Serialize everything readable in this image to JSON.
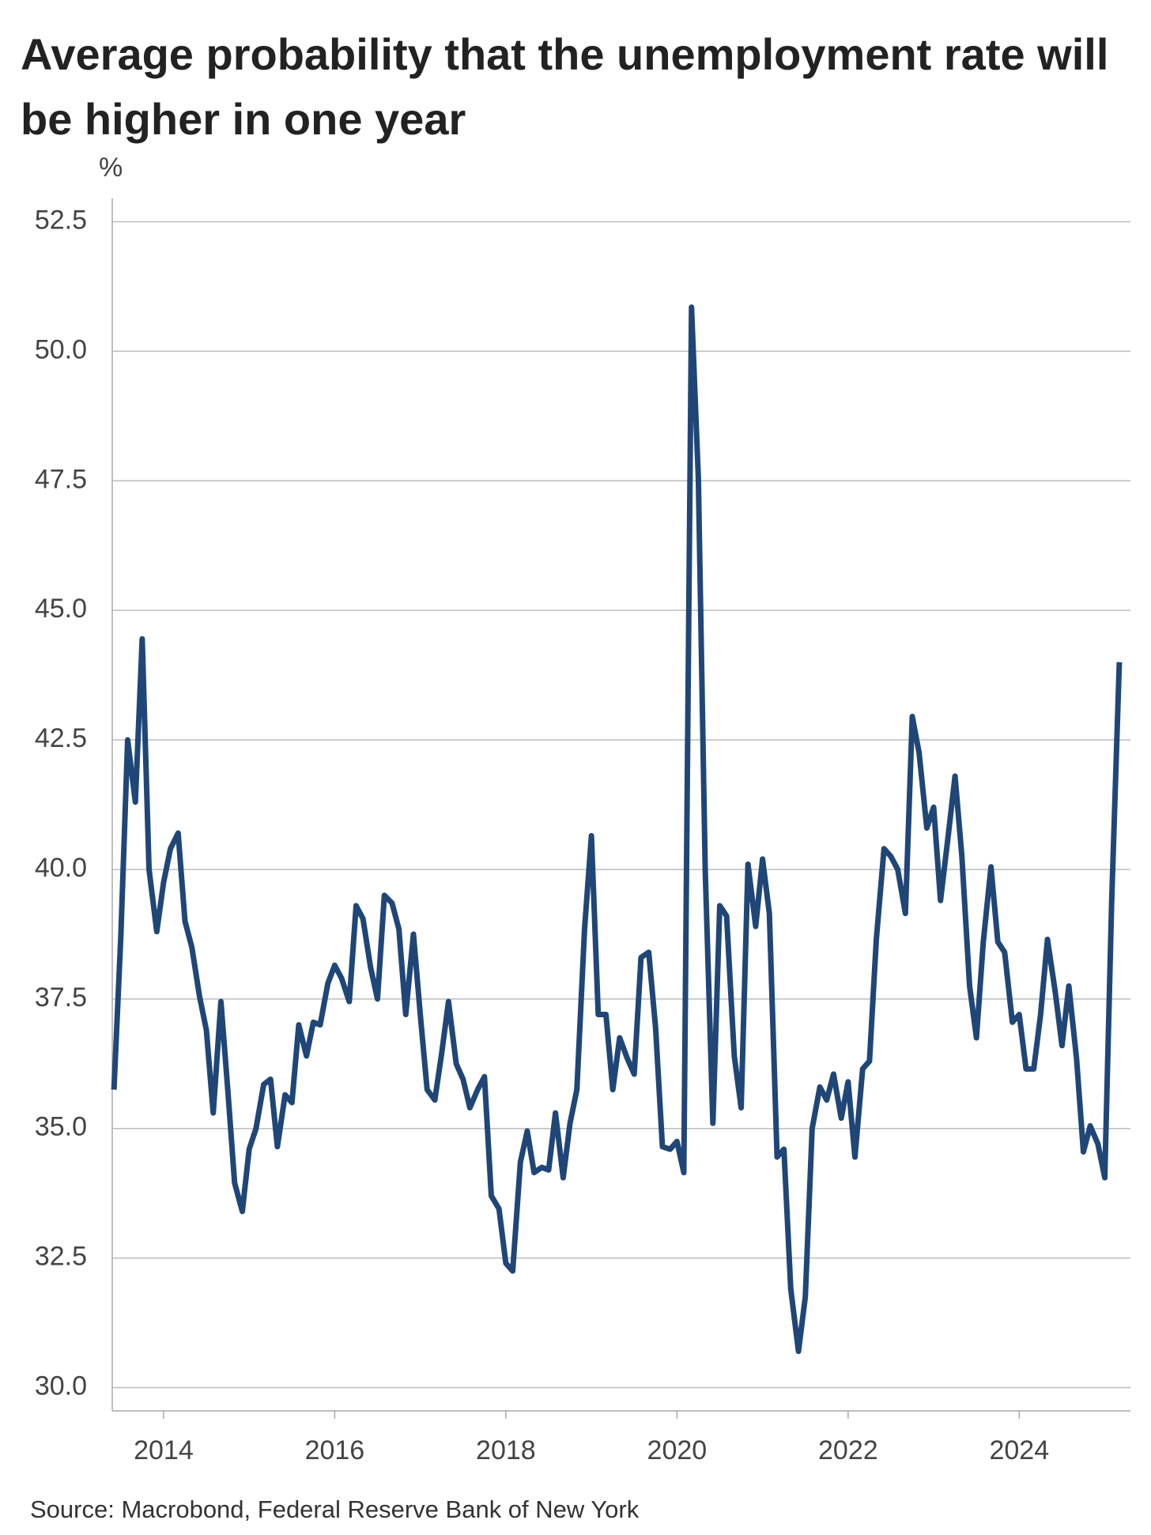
{
  "chart_data": {
    "type": "line",
    "title": "Average probability that the unemployment rate will be higher in one year",
    "y_label": "%",
    "source": "Source: Macrobond, Federal Reserve Bank of New York",
    "x": [
      2013.42,
      2013.5,
      2013.58,
      2013.67,
      2013.75,
      2013.83,
      2013.92,
      2014.0,
      2014.08,
      2014.17,
      2014.25,
      2014.33,
      2014.42,
      2014.5,
      2014.58,
      2014.67,
      2014.75,
      2014.83,
      2014.92,
      2015.0,
      2015.08,
      2015.17,
      2015.25,
      2015.33,
      2015.42,
      2015.5,
      2015.58,
      2015.67,
      2015.75,
      2015.83,
      2015.92,
      2016.0,
      2016.08,
      2016.17,
      2016.25,
      2016.33,
      2016.42,
      2016.5,
      2016.58,
      2016.67,
      2016.75,
      2016.83,
      2016.92,
      2017.0,
      2017.08,
      2017.17,
      2017.25,
      2017.33,
      2017.42,
      2017.5,
      2017.58,
      2017.67,
      2017.75,
      2017.83,
      2017.92,
      2018.0,
      2018.08,
      2018.17,
      2018.25,
      2018.33,
      2018.42,
      2018.5,
      2018.58,
      2018.67,
      2018.75,
      2018.83,
      2018.92,
      2019.0,
      2019.08,
      2019.17,
      2019.25,
      2019.33,
      2019.42,
      2019.5,
      2019.58,
      2019.67,
      2019.75,
      2019.83,
      2019.92,
      2020.0,
      2020.08,
      2020.17,
      2020.25,
      2020.33,
      2020.42,
      2020.5,
      2020.58,
      2020.67,
      2020.75,
      2020.83,
      2020.92,
      2021.0,
      2021.08,
      2021.17,
      2021.25,
      2021.33,
      2021.42,
      2021.5,
      2021.58,
      2021.67,
      2021.75,
      2021.83,
      2021.92,
      2022.0,
      2022.08,
      2022.17,
      2022.25,
      2022.33,
      2022.42,
      2022.5,
      2022.58,
      2022.67,
      2022.75,
      2022.83,
      2022.92,
      2023.0,
      2023.08,
      2023.17,
      2023.25,
      2023.33,
      2023.42,
      2023.5,
      2023.58,
      2023.67,
      2023.75,
      2023.83,
      2023.92,
      2024.0,
      2024.08,
      2024.17,
      2024.25,
      2024.33,
      2024.42,
      2024.5,
      2024.58,
      2024.67,
      2024.75,
      2024.83,
      2024.92,
      2025.0,
      2025.08,
      2025.17
    ],
    "series": [
      {
        "color": "#1f4677",
        "values": [
          35.75,
          38.7,
          42.5,
          41.3,
          44.45,
          40.0,
          38.8,
          39.75,
          40.4,
          40.7,
          39.0,
          38.5,
          37.55,
          36.9,
          35.3,
          37.45,
          35.75,
          33.95,
          33.4,
          34.6,
          35.0,
          35.85,
          35.95,
          34.65,
          35.65,
          35.5,
          37.0,
          36.4,
          37.05,
          37.0,
          37.8,
          38.15,
          37.9,
          37.45,
          39.3,
          39.05,
          38.1,
          37.5,
          39.5,
          39.35,
          38.85,
          37.2,
          38.75,
          37.2,
          35.75,
          35.55,
          36.45,
          37.45,
          36.25,
          35.95,
          35.4,
          35.75,
          36.0,
          33.7,
          33.45,
          32.4,
          32.25,
          34.35,
          34.95,
          34.15,
          34.25,
          34.2,
          35.3,
          34.05,
          35.1,
          35.75,
          38.85,
          40.65,
          37.2,
          37.2,
          35.75,
          36.75,
          36.35,
          36.05,
          38.3,
          38.4,
          36.95,
          34.65,
          34.6,
          34.75,
          34.15,
          50.85,
          47.55,
          40.0,
          35.1,
          39.3,
          39.1,
          36.4,
          35.4,
          40.1,
          38.9,
          40.2,
          39.15,
          34.45,
          34.6,
          31.9,
          30.7,
          31.75,
          35.0,
          35.8,
          35.55,
          36.05,
          35.2,
          35.9,
          34.45,
          36.15,
          36.3,
          38.65,
          40.4,
          40.25,
          40.0,
          39.15,
          42.95,
          42.25,
          40.8,
          41.2,
          39.4,
          40.65,
          41.8,
          40.25,
          37.75,
          36.75,
          38.6,
          40.05,
          38.6,
          38.4,
          37.05,
          37.2,
          36.15,
          36.15,
          37.2,
          38.65,
          37.65,
          36.6,
          37.75,
          36.35,
          34.55,
          35.05,
          34.7,
          34.05,
          39.35,
          44.0
        ]
      }
    ],
    "xlim": [
      2013.4,
      2025.3
    ],
    "xticks": [
      2014,
      2016,
      2018,
      2020,
      2022,
      2024
    ],
    "ylim": [
      29.55,
      52.95
    ],
    "yticks": [
      {
        "value": 30,
        "label": "30.0"
      },
      {
        "value": 32.5,
        "label": "32.5"
      },
      {
        "value": 35,
        "label": "35.0"
      },
      {
        "value": 37.5,
        "label": "37.5"
      },
      {
        "value": 40,
        "label": "40.0"
      },
      {
        "value": 42.5,
        "label": "42.5"
      },
      {
        "value": 45,
        "label": "45.0"
      },
      {
        "value": 47.5,
        "label": "47.5"
      },
      {
        "value": 50,
        "label": "50.0"
      },
      {
        "value": 52.5,
        "label": "52.5"
      }
    ],
    "grid": true
  }
}
